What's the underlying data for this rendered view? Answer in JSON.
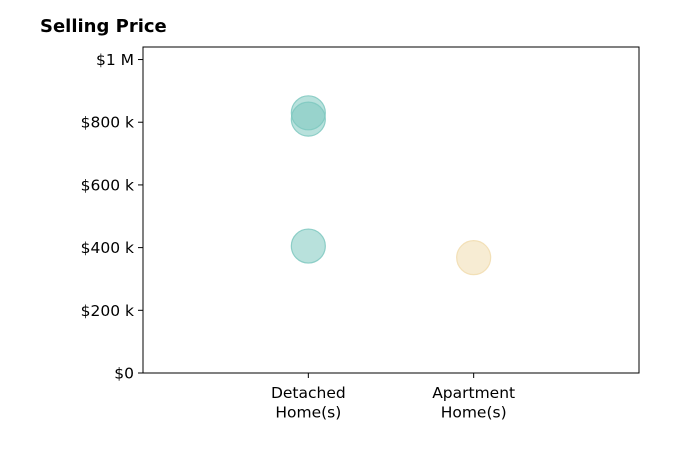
{
  "chart_data": {
    "type": "scatter",
    "title": "Selling Price",
    "xlabel": "",
    "ylabel": "",
    "categories": [
      "Detached\nHome(s)",
      "Apartment\nHome(s)"
    ],
    "ylim": [
      0,
      1040000
    ],
    "yticks": [
      0,
      200000,
      400000,
      600000,
      800000,
      1000000
    ],
    "ytick_labels": [
      "$0",
      "$200 k",
      "$400 k",
      "$600 k",
      "$800 k",
      "$1 M"
    ],
    "grid": false,
    "points": [
      {
        "category": "Detached\nHome(s)",
        "value": 830000,
        "color": "#7ec8c0"
      },
      {
        "category": "Detached\nHome(s)",
        "value": 810000,
        "color": "#7ec8c0"
      },
      {
        "category": "Detached\nHome(s)",
        "value": 405000,
        "color": "#7ec8c0"
      },
      {
        "category": "Apartment\nHome(s)",
        "value": 368000,
        "color": "#f1dcae"
      }
    ]
  }
}
